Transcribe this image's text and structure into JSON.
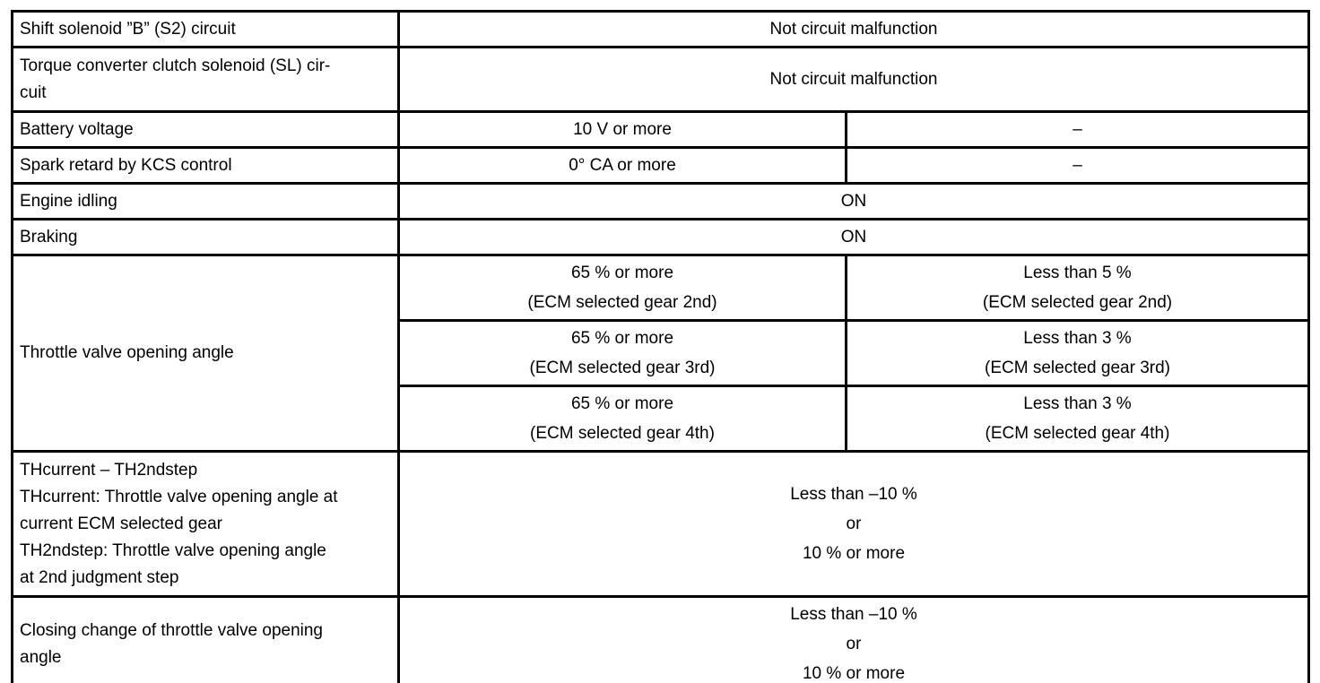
{
  "colors": {
    "border": "#000000",
    "text": "#000000",
    "background": "#ffffff"
  },
  "table": {
    "rows": [
      {
        "label": [
          "Shift solenoid ”B” (S2) circuit"
        ],
        "value": [
          "Not circuit malfunction"
        ]
      },
      {
        "label": [
          "Torque converter clutch solenoid (SL) cir-",
          "cuit"
        ],
        "value": [
          "Not circuit malfunction"
        ]
      },
      {
        "label": [
          "Battery voltage"
        ],
        "mid": [
          "10 V or more"
        ],
        "right": [
          "–"
        ]
      },
      {
        "label": [
          "Spark retard by KCS control"
        ],
        "mid": [
          "0° CA or more"
        ],
        "right": [
          "–"
        ]
      },
      {
        "label": [
          "Engine idling"
        ],
        "value": [
          "ON"
        ]
      },
      {
        "label": [
          "Braking"
        ],
        "value": [
          "ON"
        ]
      },
      {
        "label": [
          "Throttle valve opening angle"
        ],
        "sub": [
          {
            "mid": [
              "65 % or more",
              "(ECM selected gear 2nd)"
            ],
            "right": [
              "Less than 5 %",
              "(ECM selected gear 2nd)"
            ]
          },
          {
            "mid": [
              "65 % or more",
              "(ECM selected gear 3rd)"
            ],
            "right": [
              "Less than 3 %",
              "(ECM selected gear 3rd)"
            ]
          },
          {
            "mid": [
              "65 % or more",
              "(ECM selected gear 4th)"
            ],
            "right": [
              "Less than 3 %",
              "(ECM selected gear 4th)"
            ]
          }
        ]
      },
      {
        "label": [
          "THcurrent – TH2ndstep",
          "THcurrent: Throttle valve opening angle at",
          "current ECM selected gear",
          "TH2ndstep: Throttle valve opening angle",
          "at 2nd judgment step"
        ],
        "value": [
          "Less than –10 %",
          "or",
          "10 % or more"
        ]
      },
      {
        "label": [
          "Closing change of throttle valve opening",
          "angle"
        ],
        "value": [
          "Less than –10 %",
          "or",
          "10 % or more"
        ]
      }
    ]
  }
}
